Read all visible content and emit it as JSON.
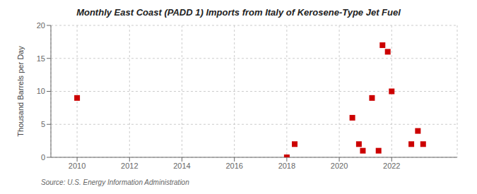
{
  "chart_data": {
    "type": "scatter",
    "title": "Monthly East Coast (PADD 1) Imports from Italy of Kerosene-Type Jet Fuel",
    "ylabel": "Thousand Barrels per Day",
    "source": "Source: U.S. Energy Information Administration",
    "x": [
      2010.0,
      2018.0,
      2018.3,
      2020.5,
      2020.75,
      2020.9,
      2021.25,
      2021.5,
      2021.65,
      2021.85,
      2022.0,
      2022.75,
      2023.0,
      2023.2
    ],
    "values": [
      9,
      0,
      2,
      6,
      2,
      1,
      9,
      1,
      17,
      16,
      10,
      2,
      4,
      2
    ],
    "color": "#cc0000",
    "marker": "square",
    "xlim": [
      2009.0,
      2024.5
    ],
    "xticks": [
      2010,
      2012,
      2014,
      2016,
      2018,
      2020,
      2022
    ],
    "ylim": [
      0,
      20
    ],
    "yticks": [
      0,
      5,
      10,
      15,
      20
    ],
    "grid": true
  }
}
